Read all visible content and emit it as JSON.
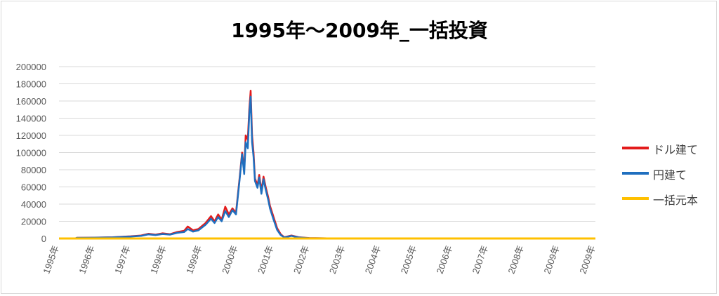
{
  "chart_data": {
    "type": "line",
    "title": "1995年～2009年_一括投資",
    "xlabel": "",
    "ylabel": "",
    "ylim": [
      0,
      200000
    ],
    "yticks": [
      0,
      20000,
      40000,
      60000,
      80000,
      100000,
      120000,
      140000,
      160000,
      180000,
      200000
    ],
    "xticks": [
      "1995年",
      "1996年",
      "1997年",
      "1998年",
      "1999年",
      "2000年",
      "2001年",
      "2002年",
      "2003年",
      "2004年",
      "2005年",
      "2006年",
      "2007年",
      "2008年",
      "2009年",
      "2009年"
    ],
    "xlim": [
      1995,
      2010
    ],
    "grid": true,
    "legend_position": "right",
    "series": [
      {
        "name": "ドル建て",
        "color": "#e31b1b",
        "points": [
          [
            1995.0,
            0
          ],
          [
            1995.45,
            0
          ],
          [
            1995.5,
            800
          ],
          [
            1996.0,
            1000
          ],
          [
            1996.5,
            1500
          ],
          [
            1997.0,
            2500
          ],
          [
            1997.3,
            3500
          ],
          [
            1997.5,
            5500
          ],
          [
            1997.7,
            4500
          ],
          [
            1997.9,
            6000
          ],
          [
            1998.1,
            5000
          ],
          [
            1998.3,
            7500
          ],
          [
            1998.5,
            9000
          ],
          [
            1998.6,
            14000
          ],
          [
            1998.75,
            9500
          ],
          [
            1998.9,
            11000
          ],
          [
            1999.1,
            18000
          ],
          [
            1999.25,
            26000
          ],
          [
            1999.35,
            20000
          ],
          [
            1999.45,
            28000
          ],
          [
            1999.55,
            22000
          ],
          [
            1999.65,
            37000
          ],
          [
            1999.75,
            28000
          ],
          [
            1999.85,
            35000
          ],
          [
            1999.95,
            30000
          ],
          [
            2000.05,
            70000
          ],
          [
            2000.12,
            100000
          ],
          [
            2000.18,
            80000
          ],
          [
            2000.22,
            120000
          ],
          [
            2000.28,
            115000
          ],
          [
            2000.32,
            150000
          ],
          [
            2000.36,
            172000
          ],
          [
            2000.4,
            120000
          ],
          [
            2000.44,
            100000
          ],
          [
            2000.48,
            70000
          ],
          [
            2000.55,
            62000
          ],
          [
            2000.6,
            74000
          ],
          [
            2000.66,
            55000
          ],
          [
            2000.72,
            72000
          ],
          [
            2000.78,
            60000
          ],
          [
            2000.85,
            48000
          ],
          [
            2000.9,
            38000
          ],
          [
            2001.0,
            25000
          ],
          [
            2001.1,
            12000
          ],
          [
            2001.2,
            5000
          ],
          [
            2001.3,
            1500
          ],
          [
            2001.5,
            3500
          ],
          [
            2001.7,
            1500
          ],
          [
            2001.9,
            800
          ],
          [
            2002.0,
            500
          ],
          [
            2002.5,
            200
          ],
          [
            2003.0,
            0
          ],
          [
            2010.0,
            0
          ]
        ]
      },
      {
        "name": "円建て",
        "color": "#1f6fbf",
        "points": [
          [
            1995.0,
            0
          ],
          [
            1995.45,
            0
          ],
          [
            1995.5,
            700
          ],
          [
            1996.0,
            900
          ],
          [
            1996.5,
            1300
          ],
          [
            1997.0,
            2200
          ],
          [
            1997.3,
            3000
          ],
          [
            1997.5,
            4800
          ],
          [
            1997.7,
            4000
          ],
          [
            1997.9,
            5200
          ],
          [
            1998.1,
            4500
          ],
          [
            1998.3,
            6500
          ],
          [
            1998.5,
            7500
          ],
          [
            1998.6,
            11000
          ],
          [
            1998.75,
            8000
          ],
          [
            1998.9,
            9500
          ],
          [
            1999.1,
            16000
          ],
          [
            1999.25,
            23000
          ],
          [
            1999.35,
            18000
          ],
          [
            1999.45,
            25000
          ],
          [
            1999.55,
            20000
          ],
          [
            1999.65,
            32000
          ],
          [
            1999.75,
            25000
          ],
          [
            1999.85,
            33000
          ],
          [
            1999.95,
            28000
          ],
          [
            2000.05,
            68000
          ],
          [
            2000.12,
            98000
          ],
          [
            2000.18,
            75000
          ],
          [
            2000.22,
            112000
          ],
          [
            2000.28,
            105000
          ],
          [
            2000.32,
            145000
          ],
          [
            2000.36,
            165000
          ],
          [
            2000.4,
            112000
          ],
          [
            2000.44,
            95000
          ],
          [
            2000.48,
            67000
          ],
          [
            2000.55,
            59000
          ],
          [
            2000.6,
            71000
          ],
          [
            2000.66,
            52000
          ],
          [
            2000.72,
            69000
          ],
          [
            2000.78,
            57000
          ],
          [
            2000.85,
            45000
          ],
          [
            2000.9,
            35000
          ],
          [
            2001.0,
            22000
          ],
          [
            2001.1,
            10000
          ],
          [
            2001.2,
            4000
          ],
          [
            2001.3,
            1200
          ],
          [
            2001.5,
            3000
          ],
          [
            2001.7,
            1200
          ],
          [
            2001.9,
            600
          ],
          [
            2002.0,
            400
          ],
          [
            2002.5,
            150
          ],
          [
            2003.0,
            0
          ],
          [
            2010.0,
            0
          ]
        ]
      },
      {
        "name": "一括元本",
        "color": "#ffc000",
        "points": [
          [
            1995.0,
            0
          ],
          [
            2010.0,
            0
          ]
        ]
      }
    ]
  }
}
